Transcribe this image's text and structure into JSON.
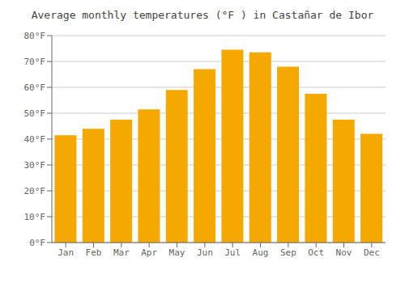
{
  "chart_data": {
    "type": "bar",
    "title": "Average monthly temperatures (°F ) in Castañar de Ibor",
    "categories": [
      "Jan",
      "Feb",
      "Mar",
      "Apr",
      "May",
      "Jun",
      "Jul",
      "Aug",
      "Sep",
      "Oct",
      "Nov",
      "Dec"
    ],
    "values": [
      41.5,
      44.0,
      47.5,
      51.5,
      59.0,
      67.0,
      74.5,
      73.5,
      68.0,
      57.5,
      47.5,
      42.0
    ],
    "color": "#F5A800",
    "ylim": [
      0,
      80
    ],
    "yticks": [
      {
        "value": 0,
        "label": "0°F"
      },
      {
        "value": 10,
        "label": "10°F"
      },
      {
        "value": 20,
        "label": "20°F"
      },
      {
        "value": 30,
        "label": "30°F"
      },
      {
        "value": 40,
        "label": "40°F"
      },
      {
        "value": 50,
        "label": "50°F"
      },
      {
        "value": 60,
        "label": "60°F"
      },
      {
        "value": 70,
        "label": "70°F"
      },
      {
        "value": 80,
        "label": "80°F"
      }
    ],
    "grid": true
  }
}
